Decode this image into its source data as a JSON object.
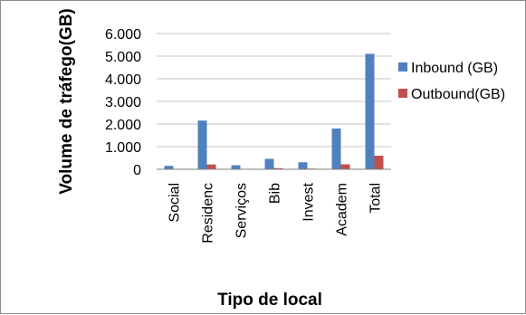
{
  "chart_data": {
    "type": "bar",
    "title": "",
    "xlabel": "Tipo de local",
    "ylabel": "Volume de tráfego(GB)",
    "categories": [
      "Social",
      "Residenc",
      "Serviços",
      "Bib",
      "Invest",
      "Academ",
      "Total"
    ],
    "series": [
      {
        "name": "Inbound (GB)",
        "color": "#4f81bd",
        "values": [
          150,
          2150,
          180,
          460,
          310,
          1800,
          5100
        ]
      },
      {
        "name": "Outbound(GB)",
        "color": "#c0504d",
        "values": [
          15,
          210,
          20,
          50,
          30,
          220,
          600
        ]
      }
    ],
    "ylim": [
      0,
      6000
    ],
    "yticks": [
      "0",
      "1.000",
      "2.000",
      "3.000",
      "4.000",
      "5.000",
      "6.000"
    ],
    "grid": true,
    "legend": "right"
  }
}
